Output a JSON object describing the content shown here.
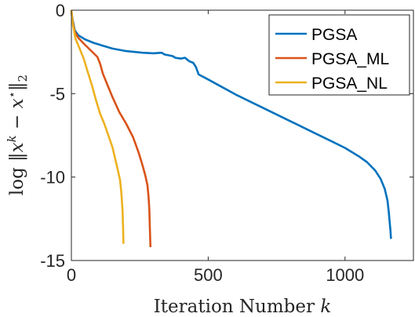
{
  "chart_data": {
    "type": "line",
    "xlabel": "Iteration Number k",
    "ylabel": "log ||x^k − x*||_2",
    "xlim": [
      0,
      1250
    ],
    "ylim": [
      -15,
      0
    ],
    "xticks": [
      0,
      500,
      1000
    ],
    "xtick_labels": [
      "0",
      "500",
      "1000"
    ],
    "yticks": [
      0,
      -5,
      -10,
      -15
    ],
    "ytick_labels": [
      "0",
      "-5",
      "-10",
      "-15"
    ],
    "grid": false,
    "legend_position": "top-right",
    "series": [
      {
        "name": "PGSA",
        "color": "#0072BD",
        "x": [
          0,
          5,
          12,
          25,
          50,
          80,
          110,
          150,
          200,
          260,
          300,
          330,
          340,
          370,
          380,
          400,
          415,
          430,
          445,
          455,
          465,
          500,
          550,
          600,
          650,
          700,
          750,
          800,
          850,
          900,
          950,
          1000,
          1050,
          1080,
          1110,
          1130,
          1145,
          1155,
          1160,
          1163,
          1166,
          1168
        ],
        "y": [
          -0.1,
          -0.6,
          -1.2,
          -1.5,
          -1.75,
          -1.95,
          -2.1,
          -2.3,
          -2.45,
          -2.55,
          -2.58,
          -2.55,
          -2.65,
          -2.75,
          -2.85,
          -2.9,
          -2.85,
          -3.05,
          -3.15,
          -3.4,
          -3.85,
          -4.15,
          -4.6,
          -5.05,
          -5.45,
          -5.85,
          -6.25,
          -6.65,
          -7.05,
          -7.45,
          -7.85,
          -8.25,
          -8.75,
          -9.1,
          -9.6,
          -10.1,
          -10.7,
          -11.4,
          -12.1,
          -12.7,
          -13.2,
          -13.7
        ]
      },
      {
        "name": "PGSA_ML",
        "color": "#D95319",
        "x": [
          0,
          5,
          12,
          25,
          45,
          70,
          95,
          105,
          115,
          130,
          150,
          175,
          200,
          225,
          245,
          260,
          270,
          278,
          282,
          285,
          287,
          289
        ],
        "y": [
          0,
          -0.7,
          -1.3,
          -1.65,
          -2.0,
          -2.4,
          -2.8,
          -3.2,
          -3.8,
          -4.4,
          -5.2,
          -6.1,
          -6.8,
          -7.6,
          -8.5,
          -9.3,
          -9.9,
          -10.5,
          -11.2,
          -12.0,
          -13.2,
          -14.2
        ]
      },
      {
        "name": "PGSA_NL",
        "color": "#EDB120",
        "x": [
          0,
          5,
          15,
          30,
          45,
          60,
          75,
          90,
          105,
          120,
          135,
          150,
          160,
          170,
          178,
          183,
          187,
          189,
          190
        ],
        "y": [
          0,
          -0.8,
          -1.7,
          -2.3,
          -2.9,
          -3.7,
          -4.5,
          -5.4,
          -6.2,
          -6.8,
          -7.5,
          -8.2,
          -8.9,
          -9.6,
          -10.2,
          -11.0,
          -12.0,
          -13.0,
          -14.0
        ]
      }
    ]
  }
}
